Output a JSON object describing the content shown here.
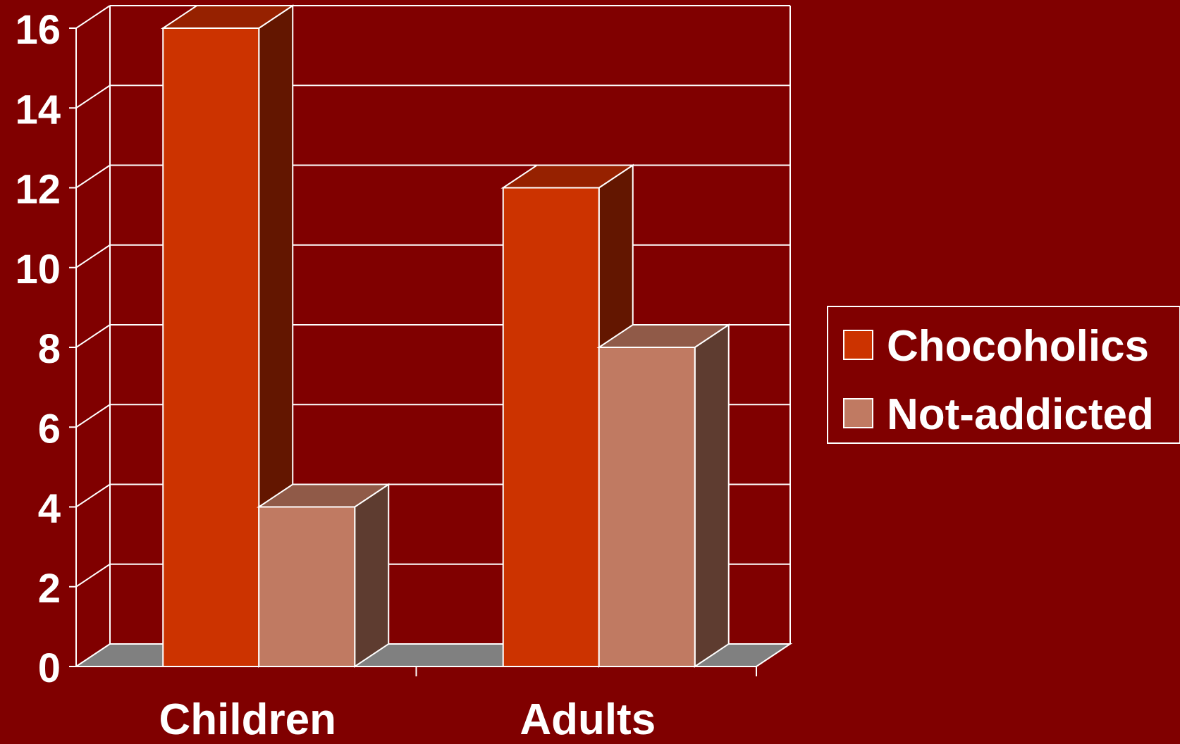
{
  "chart_data": {
    "type": "bar",
    "three_d": true,
    "categories": [
      "Children",
      "Adults"
    ],
    "series": [
      {
        "name": "Chocoholics",
        "values": [
          16,
          12
        ],
        "color": "#cc3300",
        "side_color": "#631600",
        "top_color": "#962100"
      },
      {
        "name": "Not-addicted",
        "values": [
          4,
          8
        ],
        "color": "#c07a62",
        "side_color": "#5e3c30",
        "top_color": "#905a48"
      }
    ],
    "ylim": [
      0,
      16
    ],
    "yticks": [
      "0",
      "2",
      "4",
      "6",
      "8",
      "10",
      "12",
      "14",
      "16"
    ],
    "title": "",
    "xlabel": "",
    "ylabel": "",
    "grid": true,
    "legend_position": "right",
    "colors": {
      "background": "#800000",
      "grid": "#ffffff",
      "floor": "#808080",
      "text": "#ffffff"
    }
  }
}
